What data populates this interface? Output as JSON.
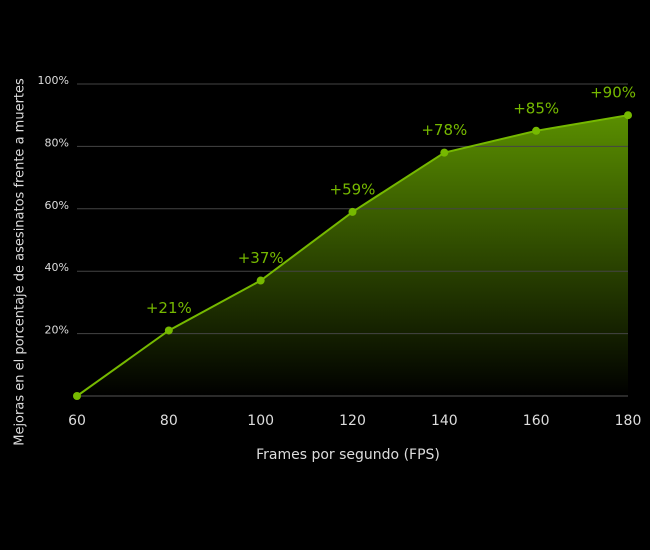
{
  "chart_data": {
    "type": "area",
    "xlabel": "Frames por segundo (FPS)",
    "ylabel": "Mejoras en el porcentaje de asesinatos frente a muertes",
    "x": [
      60,
      80,
      100,
      120,
      140,
      160,
      180
    ],
    "values": [
      0,
      21,
      37,
      59,
      78,
      85,
      90
    ],
    "value_labels": [
      null,
      "+21%",
      "+37%",
      "+59%",
      "+78%",
      "+85%",
      "+90%"
    ],
    "color": "#76b900",
    "xlim": [
      60,
      180
    ],
    "xticks": [
      60,
      80,
      100,
      120,
      140,
      160,
      180
    ],
    "ylim": [
      0,
      100
    ],
    "yticks": [
      {
        "value": 20,
        "label": "20%"
      },
      {
        "value": 40,
        "label": "40%"
      },
      {
        "value": 60,
        "label": "60%"
      },
      {
        "value": 80,
        "label": "80%"
      },
      {
        "value": 100,
        "label": "100%"
      }
    ],
    "grid": true
  }
}
